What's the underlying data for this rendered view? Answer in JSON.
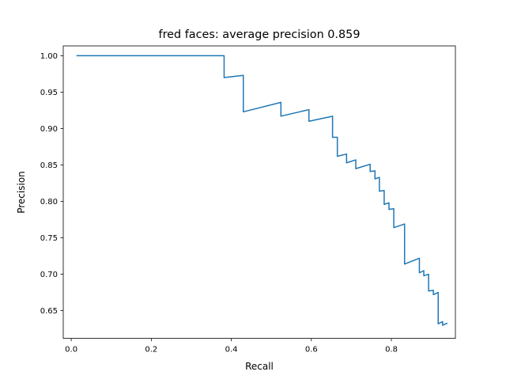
{
  "chart_data": {
    "type": "line",
    "title": "fred faces: average precision 0.859",
    "xlabel": "Recall",
    "ylabel": "Precision",
    "xlim": [
      -0.02,
      0.96
    ],
    "ylim": [
      0.612,
      1.0135
    ],
    "xticks": [
      0.0,
      0.2,
      0.4,
      0.6,
      0.8
    ],
    "xtick_labels": [
      "0.0",
      "0.2",
      "0.4",
      "0.6",
      "0.8"
    ],
    "yticks": [
      0.65,
      0.7,
      0.75,
      0.8,
      0.85,
      0.9,
      0.95,
      1.0
    ],
    "ytick_labels": [
      "0.65",
      "0.70",
      "0.75",
      "0.80",
      "0.85",
      "0.90",
      "0.95",
      "1.00"
    ],
    "grid": false,
    "series": [
      {
        "color": "#1f77b4",
        "x": [
          0.013,
          0.382,
          0.382,
          0.43,
          0.43,
          0.524,
          0.524,
          0.594,
          0.594,
          0.653,
          0.653,
          0.665,
          0.665,
          0.688,
          0.688,
          0.711,
          0.711,
          0.747,
          0.747,
          0.759,
          0.759,
          0.77,
          0.77,
          0.782,
          0.782,
          0.794,
          0.794,
          0.806,
          0.806,
          0.833,
          0.833,
          0.87,
          0.87,
          0.881,
          0.881,
          0.893,
          0.893,
          0.905,
          0.905,
          0.917,
          0.917,
          0.928,
          0.928,
          0.94
        ],
        "y": [
          1.0,
          1.0,
          0.97,
          0.973,
          0.923,
          0.936,
          0.917,
          0.926,
          0.91,
          0.917,
          0.888,
          0.888,
          0.862,
          0.865,
          0.853,
          0.857,
          0.845,
          0.851,
          0.841,
          0.842,
          0.831,
          0.833,
          0.814,
          0.815,
          0.796,
          0.798,
          0.789,
          0.79,
          0.764,
          0.769,
          0.714,
          0.722,
          0.702,
          0.705,
          0.698,
          0.7,
          0.677,
          0.678,
          0.672,
          0.675,
          0.632,
          0.635,
          0.63,
          0.633
        ]
      }
    ]
  }
}
